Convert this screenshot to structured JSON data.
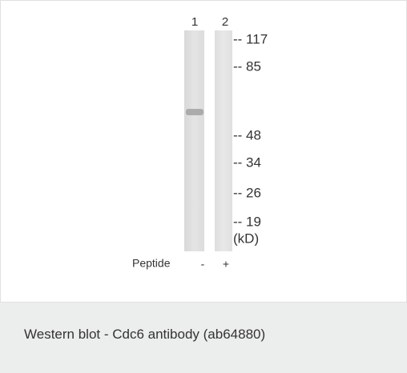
{
  "blot": {
    "lanes": [
      "1",
      "2"
    ],
    "markers": [
      "-- 117",
      "-- 85",
      "-- 48",
      "-- 34",
      "-- 26",
      "-- 19"
    ],
    "units": "(kD)",
    "peptide": {
      "label": "Peptide",
      "values": [
        "-",
        "+"
      ]
    }
  },
  "caption": "Western blot - Cdc6 antibody (ab64880)"
}
